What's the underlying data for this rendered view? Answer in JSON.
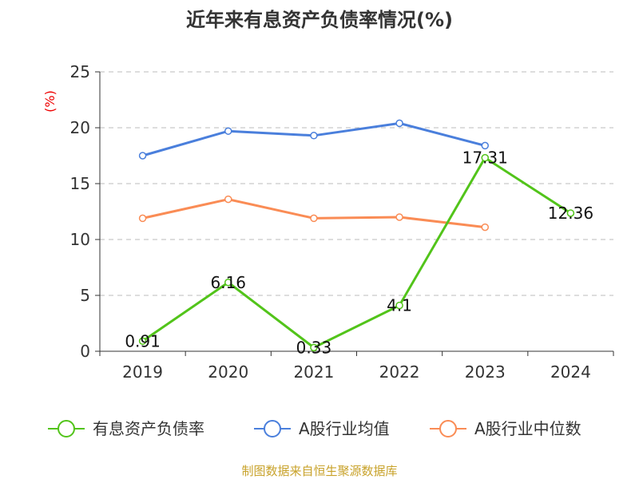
{
  "chart_data": {
    "type": "line",
    "title": "近年来有息资产负债率情况(%)",
    "ylabel": "(%)",
    "ylim": [
      0,
      25
    ],
    "yticks": [
      0,
      5,
      10,
      15,
      20,
      25
    ],
    "grid": true,
    "legend_placement": "bottom",
    "categories": [
      "2019",
      "2020",
      "2021",
      "2022",
      "2023",
      "2024"
    ],
    "series": [
      {
        "name": "有息资产负债率",
        "color": "#52c41a",
        "values": [
          0.91,
          6.16,
          0.33,
          4.1,
          17.31,
          12.36
        ],
        "labels": [
          "0.91",
          "6.16",
          "0.33",
          "4.1",
          "17.31",
          "12.36"
        ]
      },
      {
        "name": "A股行业均值",
        "color": "#4a7fdc",
        "values": [
          17.5,
          19.7,
          19.3,
          20.4,
          18.4,
          null
        ]
      },
      {
        "name": "A股行业中位数",
        "color": "#fa8c55",
        "values": [
          11.9,
          13.6,
          11.9,
          12.0,
          11.1,
          null
        ]
      }
    ]
  },
  "footer": "制图数据来自恒生聚源数据库"
}
